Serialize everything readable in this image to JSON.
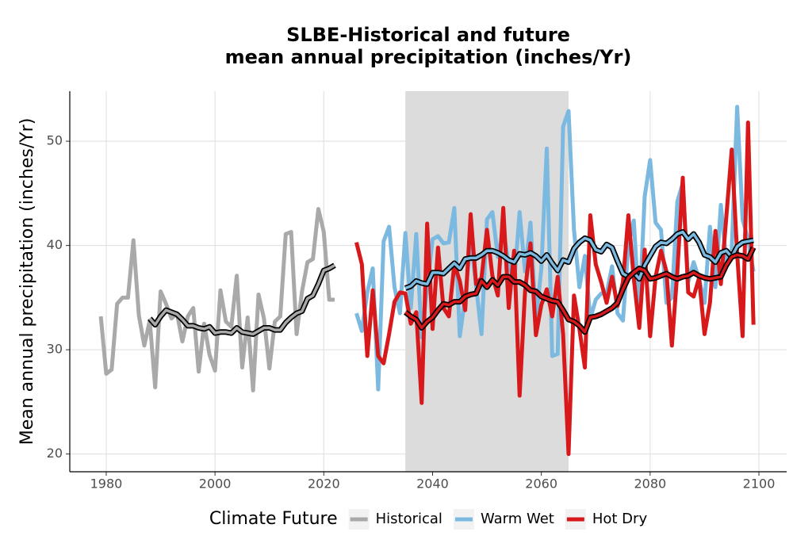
{
  "chart_data": {
    "type": "line",
    "title": [
      "SLBE-Historical and future",
      "mean annual precipitation (inches/Yr)"
    ],
    "y_label": "Mean annual precipitation (inches/Yr)",
    "legend_title": "Climate Future",
    "legend": "bottom",
    "grid": true,
    "xlim": [
      1973.3,
      2105.1
    ],
    "ylim": [
      18.3,
      54.8
    ],
    "xticks": [
      1980,
      2000,
      2020,
      2040,
      2060,
      2080,
      2100
    ],
    "yticks": [
      20,
      30,
      40,
      50
    ],
    "shade_x": [
      2035,
      2065
    ],
    "shade_color": "#dcdcdc",
    "series": [
      {
        "name": "Historical",
        "color": "#a9a9a9",
        "x": [
          1979,
          1980,
          1981,
          1982,
          1983,
          1984,
          1985,
          1986,
          1987,
          1988,
          1989,
          1990,
          1991,
          1992,
          1993,
          1994,
          1995,
          1996,
          1997,
          1998,
          1999,
          2000,
          2001,
          2002,
          2003,
          2004,
          2005,
          2006,
          2007,
          2008,
          2009,
          2010,
          2011,
          2012,
          2013,
          2014,
          2015,
          2016,
          2017,
          2018,
          2019,
          2020,
          2021,
          2022
        ],
        "values": [
          33.2,
          27.7,
          28.1,
          34.4,
          35.0,
          35.0,
          40.5,
          33.3,
          30.4,
          32.8,
          26.4,
          35.6,
          34.4,
          33.0,
          33.5,
          30.8,
          33.2,
          34.0,
          27.9,
          32.5,
          29.5,
          28.0,
          35.7,
          32.7,
          32.2,
          37.1,
          28.3,
          33.1,
          26.1,
          35.3,
          33.0,
          28.2,
          32.7,
          33.2,
          41.1,
          41.3,
          31.5,
          35.6,
          38.4,
          38.7,
          43.5,
          41.3,
          34.8,
          34.8
        ],
        "trend": [
          null,
          null,
          null,
          null,
          null,
          null,
          null,
          null,
          null,
          33.0,
          32.4,
          33.2,
          33.8,
          33.6,
          33.4,
          32.9,
          32.3,
          32.3,
          32.1,
          32.0,
          32.2,
          31.6,
          31.7,
          31.7,
          31.6,
          32.1,
          31.7,
          31.6,
          31.5,
          31.8,
          32.1,
          32.1,
          31.9,
          31.9,
          32.6,
          33.1,
          33.5,
          33.7,
          34.9,
          35.2,
          36.3,
          37.6,
          37.8,
          38.1
        ]
      },
      {
        "name": "Warm Wet",
        "color": "#7cb9e0",
        "x": [
          2026,
          2027,
          2028,
          2029,
          2030,
          2031,
          2032,
          2033,
          2034,
          2035,
          2036,
          2037,
          2038,
          2039,
          2040,
          2041,
          2042,
          2043,
          2044,
          2045,
          2046,
          2047,
          2048,
          2049,
          2050,
          2051,
          2052,
          2053,
          2054,
          2055,
          2056,
          2057,
          2058,
          2059,
          2060,
          2061,
          2062,
          2063,
          2064,
          2065,
          2066,
          2067,
          2068,
          2069,
          2070,
          2071,
          2072,
          2073,
          2074,
          2075,
          2076,
          2077,
          2078,
          2079,
          2080,
          2081,
          2082,
          2083,
          2084,
          2085,
          2086,
          2087,
          2088,
          2089,
          2090,
          2091,
          2092,
          2093,
          2094,
          2095,
          2096,
          2097,
          2098,
          2099
        ],
        "values": [
          33.5,
          31.8,
          35.5,
          37.8,
          26.2,
          40.4,
          41.8,
          36.0,
          33.5,
          41.2,
          34.0,
          41.1,
          31.2,
          36.0,
          40.6,
          40.9,
          40.2,
          40.3,
          43.6,
          31.3,
          35.0,
          40.6,
          36.1,
          31.5,
          42.5,
          43.2,
          38.9,
          41.5,
          38.2,
          36.5,
          43.2,
          37.5,
          42.2,
          32.8,
          37.8,
          49.3,
          29.4,
          29.6,
          51.4,
          52.9,
          41.5,
          36.0,
          39.0,
          33.0,
          34.8,
          35.4,
          35.4,
          38.0,
          33.5,
          32.8,
          40.0,
          42.4,
          33.3,
          44.7,
          48.2,
          42.2,
          41.5,
          34.5,
          35.0,
          44.2,
          46.0,
          36.5,
          38.4,
          36.8,
          34.5,
          41.8,
          36.0,
          43.9,
          38.5,
          39.5,
          53.3,
          42.5,
          40.6,
          37.5
        ],
        "trend": [
          null,
          null,
          null,
          null,
          null,
          null,
          null,
          null,
          null,
          35.9,
          36.1,
          36.6,
          36.4,
          36.3,
          37.4,
          37.4,
          37.3,
          37.8,
          38.3,
          37.8,
          38.7,
          38.8,
          38.8,
          39.1,
          39.5,
          39.5,
          39.3,
          39.0,
          38.6,
          38.4,
          39.2,
          39.1,
          39.3,
          39.0,
          38.5,
          39.1,
          38.3,
          37.6,
          38.6,
          38.4,
          39.7,
          40.3,
          40.7,
          40.5,
          39.6,
          39.4,
          40.1,
          39.8,
          38.5,
          37.3,
          37.0,
          37.4,
          36.8,
          38.1,
          39.0,
          39.9,
          40.3,
          40.2,
          40.6,
          41.1,
          41.3,
          40.6,
          41.1,
          40.3,
          39.1,
          38.9,
          38.4,
          39.3,
          39.5,
          38.9,
          39.9,
          40.3,
          40.4,
          40.5
        ]
      },
      {
        "name": "Hot Dry",
        "color": "#d7191c",
        "x": [
          2026,
          2027,
          2028,
          2029,
          2030,
          2031,
          2032,
          2033,
          2034,
          2035,
          2036,
          2037,
          2038,
          2039,
          2040,
          2041,
          2042,
          2043,
          2044,
          2045,
          2046,
          2047,
          2048,
          2049,
          2050,
          2051,
          2052,
          2053,
          2054,
          2055,
          2056,
          2057,
          2058,
          2059,
          2060,
          2061,
          2062,
          2063,
          2064,
          2065,
          2066,
          2067,
          2068,
          2069,
          2070,
          2071,
          2072,
          2073,
          2074,
          2075,
          2076,
          2077,
          2078,
          2079,
          2080,
          2081,
          2082,
          2083,
          2084,
          2085,
          2086,
          2087,
          2088,
          2089,
          2090,
          2091,
          2092,
          2093,
          2094,
          2095,
          2096,
          2097,
          2098,
          2099
        ],
        "values": [
          40.3,
          38.2,
          29.4,
          35.7,
          29.4,
          28.7,
          31.5,
          34.6,
          35.5,
          35.4,
          32.5,
          33.6,
          24.9,
          42.1,
          32.0,
          39.8,
          34.0,
          33.2,
          38.2,
          36.6,
          33.8,
          43.0,
          36.3,
          36.9,
          41.5,
          37.1,
          35.2,
          43.6,
          34.0,
          39.5,
          25.6,
          35.6,
          40.2,
          31.4,
          34.3,
          35.8,
          33.2,
          37.0,
          31.5,
          20.0,
          35.2,
          32.0,
          28.3,
          42.9,
          38.2,
          36.5,
          34.5,
          37.0,
          34.2,
          36.5,
          42.9,
          36.8,
          32.1,
          39.6,
          31.3,
          37.0,
          39.5,
          37.5,
          30.4,
          37.5,
          46.5,
          35.5,
          35.1,
          36.9,
          31.5,
          34.5,
          41.4,
          36.3,
          42.7,
          49.2,
          39.2,
          31.3,
          51.8,
          32.4
        ],
        "trend": [
          null,
          null,
          null,
          null,
          null,
          null,
          null,
          null,
          null,
          33.6,
          33.2,
          32.9,
          32.1,
          32.7,
          33.1,
          33.8,
          34.4,
          34.3,
          34.6,
          34.6,
          35.1,
          35.3,
          35.4,
          36.6,
          36.0,
          36.7,
          36.2,
          37.0,
          37.0,
          36.5,
          36.5,
          36.2,
          35.7,
          35.6,
          35.1,
          34.9,
          34.7,
          34.6,
          33.8,
          32.9,
          32.7,
          32.3,
          31.7,
          33.1,
          33.2,
          33.4,
          33.7,
          34.0,
          34.5,
          35.8,
          36.9,
          37.4,
          37.8,
          37.6,
          36.8,
          36.9,
          37.1,
          37.3,
          37.0,
          36.8,
          37.0,
          37.1,
          37.4,
          37.1,
          36.9,
          36.8,
          36.9,
          37.0,
          38.1,
          38.9,
          39.1,
          39.0,
          38.7,
          39.8
        ]
      }
    ]
  }
}
